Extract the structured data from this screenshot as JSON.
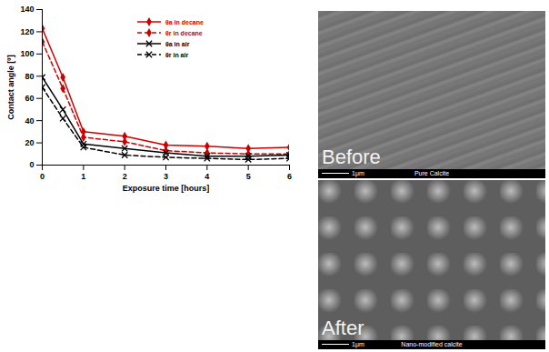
{
  "chart_data": {
    "type": "line",
    "x_label": "Exposure time [hours]",
    "y_label": "Contact angle [º]",
    "x": [
      0,
      0.5,
      1,
      2,
      3,
      4,
      5,
      6
    ],
    "series": [
      {
        "name": "θa in decane",
        "color": "#cc0000",
        "marker": "diamond",
        "line_style": "solid",
        "values": [
          123,
          79,
          30,
          26,
          18,
          17,
          15,
          16
        ]
      },
      {
        "name": "θr in decane",
        "color": "#cc0000",
        "marker": "diamond",
        "line_style": "dashed",
        "values": [
          111,
          69,
          25,
          21,
          13,
          11,
          10,
          10
        ]
      },
      {
        "name": "θa in air",
        "color": "#000000",
        "marker": "x",
        "line_style": "solid",
        "values": [
          79,
          50,
          19,
          15,
          11,
          8,
          8,
          9
        ]
      },
      {
        "name": "θr in air",
        "color": "#000000",
        "marker": "x",
        "line_style": "dashed",
        "values": [
          70,
          42,
          16,
          9,
          7,
          6,
          5,
          6
        ]
      }
    ],
    "xlim": [
      0,
      6
    ],
    "xticks": [
      0,
      1,
      2,
      3,
      4,
      5,
      6
    ],
    "ylim": [
      0,
      140
    ],
    "yticks": [
      0,
      20,
      40,
      60,
      80,
      100,
      120,
      140
    ],
    "grid": false,
    "legend": "top"
  },
  "images": [
    {
      "caption": "Before",
      "label": "Pure Calcite",
      "scale_bar": "1μm"
    },
    {
      "caption": "After",
      "label": "Nano-modified calcite",
      "scale_bar": "1μm"
    }
  ]
}
